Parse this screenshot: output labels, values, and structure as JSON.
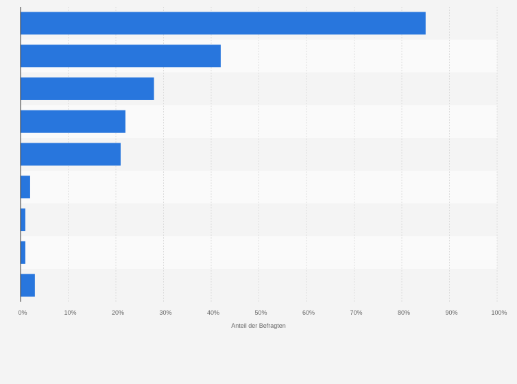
{
  "chart_data": {
    "type": "bar",
    "orientation": "horizontal",
    "categories": [
      "",
      "",
      "",
      "",
      "",
      "",
      "",
      "",
      ""
    ],
    "values": [
      85,
      42,
      28,
      22,
      21,
      2,
      1,
      1,
      3
    ],
    "xlabel": "Anteil der Befragten",
    "ylabel": "",
    "xlim": [
      0,
      100
    ],
    "x_ticks": [
      "0%",
      "10%",
      "20%",
      "30%",
      "40%",
      "50%",
      "60%",
      "70%",
      "80%",
      "90%",
      "100%"
    ],
    "grid": true,
    "colors": {
      "bar": "#2876dd",
      "band_dark": "#f4f4f4",
      "band_light": "#fafafa",
      "grid": "#dddddd",
      "axis": "#333333"
    }
  }
}
